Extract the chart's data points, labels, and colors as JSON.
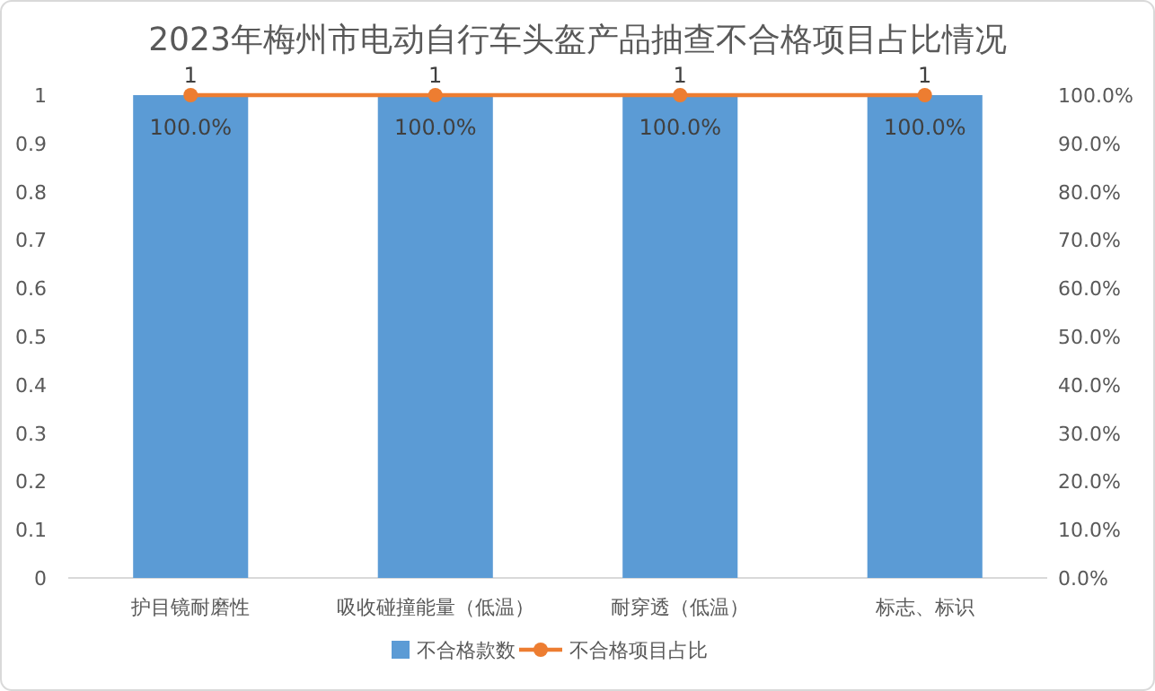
{
  "chart_data": {
    "type": "bar",
    "title": "2023年梅州市电动自行车头盔产品抽查不合格项目占比情况",
    "categories": [
      "护目镜耐磨性",
      "吸收碰撞能量（低温）",
      "耐穿透（低温）",
      "标志、标识"
    ],
    "series": [
      {
        "name": "不合格款数",
        "color": "#5b9bd5",
        "values": [
          1,
          1,
          1,
          1
        ],
        "value_labels": [
          "1",
          "1",
          "1",
          "1"
        ]
      },
      {
        "name": "不合格项目占比",
        "type": "line",
        "axis": "y2",
        "color": "#ed7d31",
        "marker": "circle",
        "values": [
          100,
          100,
          100,
          100
        ],
        "value_labels": [
          "100.0%",
          "100.0%",
          "100.0%",
          "100.0%"
        ]
      }
    ],
    "ylim": [
      0,
      1
    ],
    "yticks": [
      0,
      0.1,
      0.2,
      0.3,
      0.4,
      0.5,
      0.6,
      0.7,
      0.8,
      0.9,
      1
    ],
    "y2lim": [
      0,
      100
    ],
    "y2ticks": [
      {
        "value": 0,
        "label": "0.0%"
      },
      {
        "value": 10,
        "label": "10.0%"
      },
      {
        "value": 20,
        "label": "20.0%"
      },
      {
        "value": 30,
        "label": "30.0%"
      },
      {
        "value": 40,
        "label": "40.0%"
      },
      {
        "value": 50,
        "label": "50.0%"
      },
      {
        "value": 60,
        "label": "60.0%"
      },
      {
        "value": 70,
        "label": "70.0%"
      },
      {
        "value": 80,
        "label": "80.0%"
      },
      {
        "value": 90,
        "label": "90.0%"
      },
      {
        "value": 100,
        "label": "100.0%"
      }
    ],
    "legend": "bottom"
  }
}
